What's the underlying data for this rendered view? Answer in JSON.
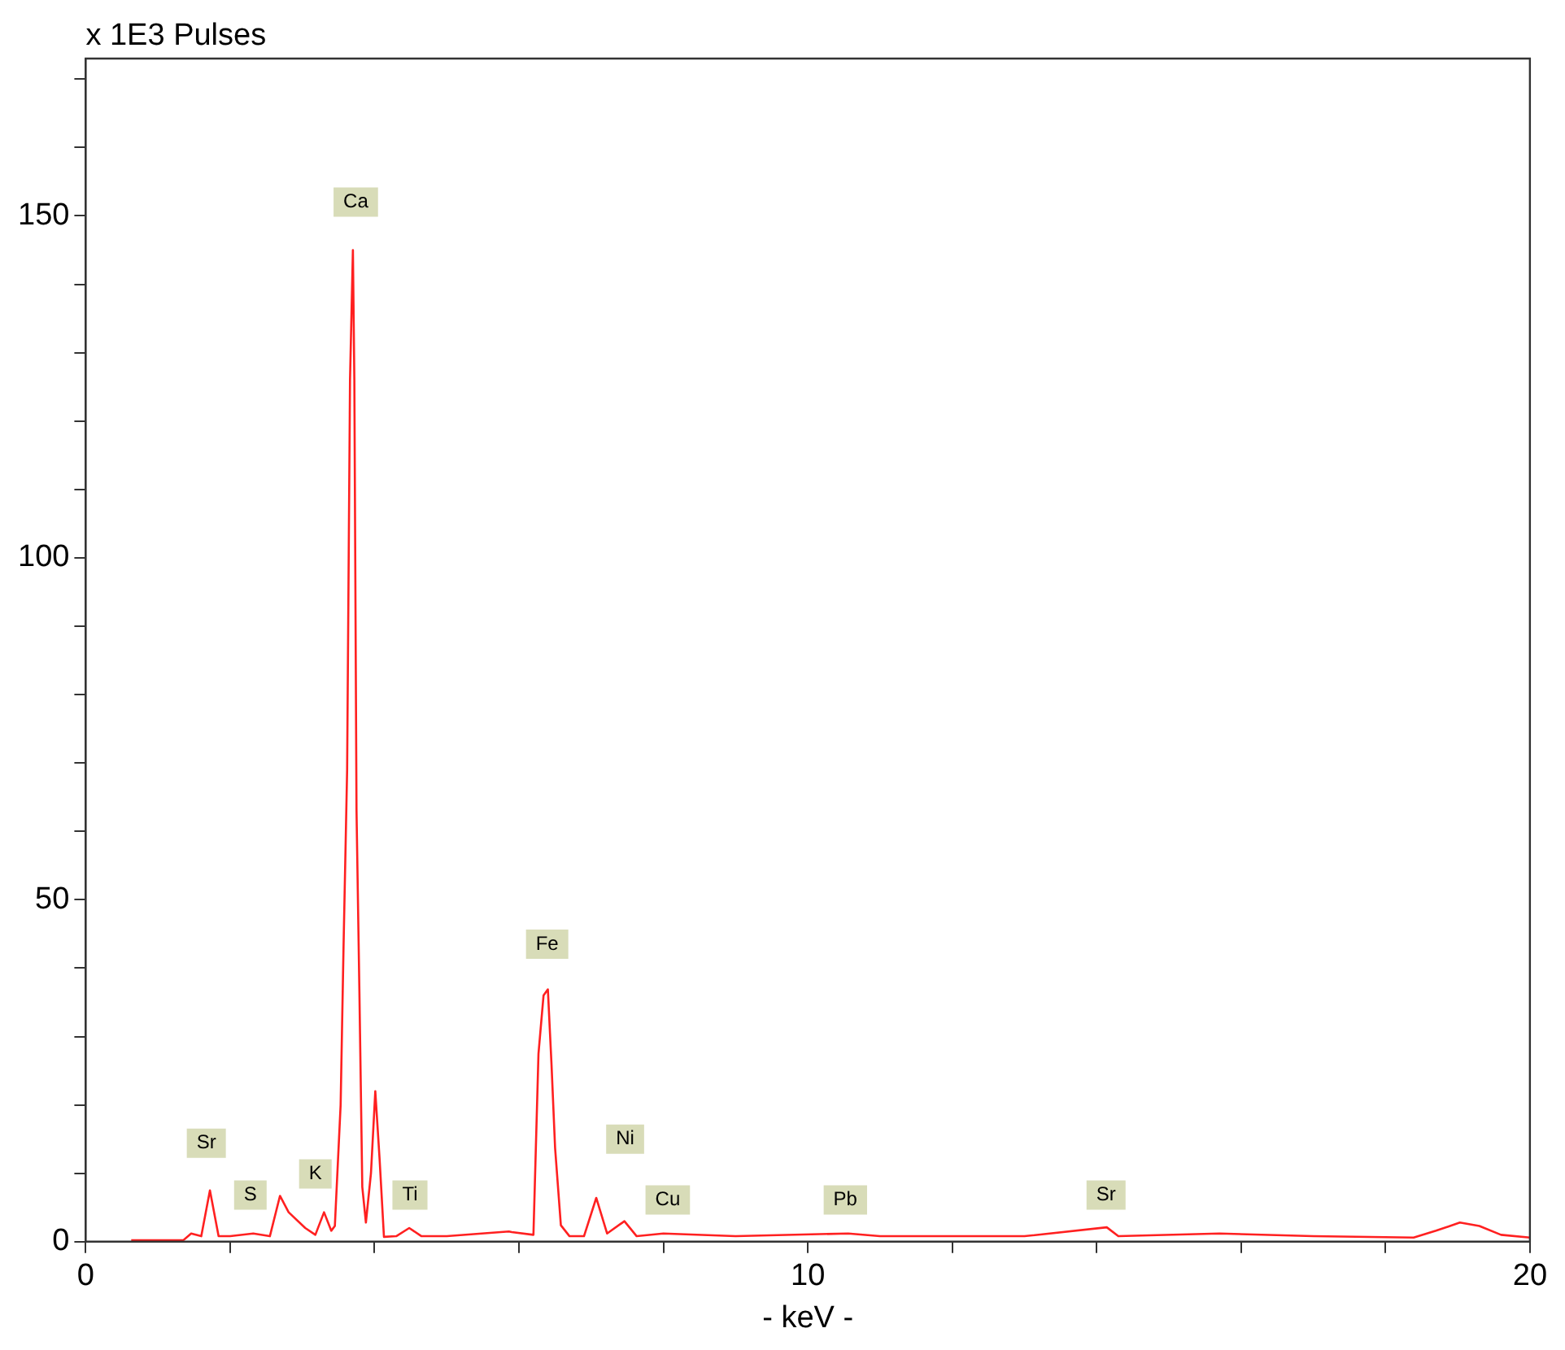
{
  "chart_data": {
    "type": "line",
    "ylabel": "x 1E3 Pulses",
    "xlabel": "- keV -",
    "x": [
      0.63,
      1.35,
      1.46,
      1.6,
      1.72,
      1.84,
      2.0,
      2.32,
      2.55,
      2.69,
      2.81,
      3.04,
      3.18,
      3.3,
      3.4,
      3.45,
      3.53,
      3.57,
      3.62,
      3.66,
      3.7,
      3.72,
      3.75,
      3.79,
      3.83,
      3.88,
      3.95,
      4.01,
      4.07,
      4.13,
      4.3,
      4.48,
      4.65,
      5.0,
      5.86,
      5.9,
      6.2,
      6.27,
      6.34,
      6.4,
      6.45,
      6.5,
      6.58,
      6.7,
      6.9,
      7.07,
      7.22,
      7.46,
      7.63,
      8.0,
      9.0,
      10.56,
      11.0,
      12.0,
      13.0,
      14.14,
      14.3,
      15.7,
      17.0,
      18.39,
      18.7,
      19.03,
      19.3,
      19.6,
      20
    ],
    "series": [
      {
        "color": "#ff2020",
        "values": [
          0.2,
          0.2,
          1.2,
          0.8,
          7.5,
          0.8,
          0.8,
          1.2,
          0.8,
          6.7,
          4.3,
          2.0,
          1.0,
          4.3,
          1.6,
          2.3,
          20,
          43,
          69,
          126,
          145,
          126,
          63,
          36.5,
          8,
          2.8,
          10,
          22,
          12,
          0.7,
          0.8,
          2.0,
          0.8,
          0.8,
          1.5,
          1.4,
          1.0,
          27.5,
          36,
          36.9,
          26,
          13.7,
          2.4,
          0.8,
          0.8,
          6.4,
          1.2,
          3.0,
          0.8,
          1.2,
          0.8,
          1.2,
          0.8,
          0.8,
          0.8,
          2.1,
          0.8,
          1.2,
          0.8,
          0.6,
          1.6,
          2.8,
          2.3,
          1.0,
          0.6
        ]
      }
    ],
    "xlim": [
      0,
      20
    ],
    "xticks": [
      0,
      {
        "value": 2,
        "label": null
      },
      {
        "value": 4,
        "label": null
      },
      {
        "value": 6,
        "label": null
      },
      {
        "value": 8,
        "label": null
      },
      10,
      {
        "value": 12,
        "label": null
      },
      {
        "value": 14,
        "label": null
      },
      {
        "value": 16,
        "label": null
      },
      {
        "value": 18,
        "label": null
      },
      20
    ],
    "ylim": [
      0,
      173
    ],
    "yticks": [
      0,
      {
        "value": 10,
        "label": null
      },
      {
        "value": 20,
        "label": null
      },
      {
        "value": 30,
        "label": null
      },
      {
        "value": 40,
        "label": null
      },
      50,
      {
        "value": 60,
        "label": null
      },
      {
        "value": 70,
        "label": null
      },
      {
        "value": 80,
        "label": null
      },
      {
        "value": 90,
        "label": null
      },
      100,
      {
        "value": 110,
        "label": null
      },
      {
        "value": 120,
        "label": null
      },
      {
        "value": 130,
        "label": null
      },
      {
        "value": 140,
        "label": null
      },
      150,
      {
        "value": 160,
        "label": null
      },
      {
        "value": 170,
        "label": null
      }
    ],
    "annotations": [
      {
        "text": "Ca",
        "x": 3.74,
        "y": 152
      },
      {
        "text": "Fe",
        "x": 6.39,
        "y": 43.5
      },
      {
        "text": "Sr",
        "x": 1.67,
        "y": 14.4
      },
      {
        "text": "S",
        "x": 2.28,
        "y": 6.8
      },
      {
        "text": "K",
        "x": 3.18,
        "y": 9.9
      },
      {
        "text": "Ti",
        "x": 4.49,
        "y": 6.8
      },
      {
        "text": "Ni",
        "x": 7.47,
        "y": 15
      },
      {
        "text": "Cu",
        "x": 8.06,
        "y": 6.1
      },
      {
        "text": "Pb",
        "x": 10.52,
        "y": 6.1
      },
      {
        "text": "Sr",
        "x": 14.13,
        "y": 6.8
      }
    ],
    "grid": false,
    "legend": false,
    "marker": "none",
    "line_style": "solid"
  }
}
